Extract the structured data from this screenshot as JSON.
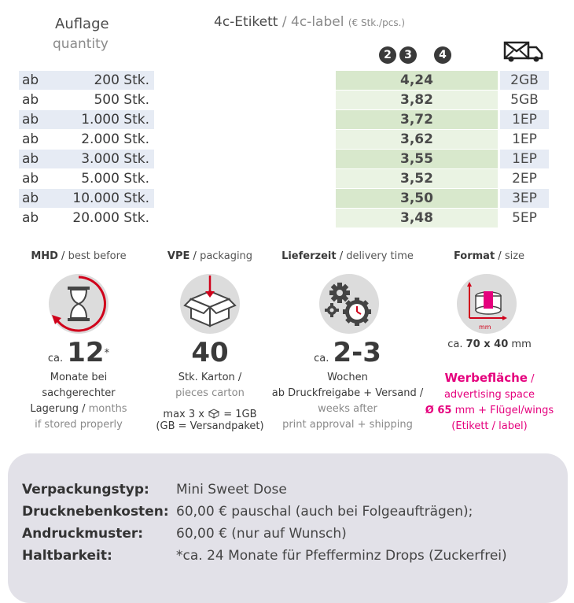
{
  "header": {
    "quantity_de": "Auflage",
    "quantity_en": "quantity",
    "price_de": "4c-Etikett",
    "price_sep": " / ",
    "price_en": "4c-label",
    "price_unit": "(€ Stk./pcs.)",
    "circle_numbers": [
      "2",
      "3",
      "4"
    ]
  },
  "rows": [
    {
      "ab": "ab",
      "qty": "200 Stk.",
      "price": "4,24",
      "ship": "2GB"
    },
    {
      "ab": "ab",
      "qty": "500 Stk.",
      "price": "3,82",
      "ship": "5GB"
    },
    {
      "ab": "ab",
      "qty": "1.000 Stk.",
      "price": "3,72",
      "ship": "1EP"
    },
    {
      "ab": "ab",
      "qty": "2.000 Stk.",
      "price": "3,62",
      "ship": "1EP"
    },
    {
      "ab": "ab",
      "qty": "3.000 Stk.",
      "price": "3,55",
      "ship": "1EP"
    },
    {
      "ab": "ab",
      "qty": "5.000 Stk.",
      "price": "3,52",
      "ship": "2EP"
    },
    {
      "ab": "ab",
      "qty": "10.000 Stk.",
      "price": "3,50",
      "ship": "3EP"
    },
    {
      "ab": "ab",
      "qty": "20.000 Stk.",
      "price": "3,48",
      "ship": "5EP"
    }
  ],
  "colors": {
    "row_blue": "#e6ebf4",
    "row_green_dark": "#d8e8cc",
    "row_green_light": "#eaf3e3",
    "accent_pink": "#e5007d",
    "accent_red": "#d0021b"
  },
  "info": {
    "mhd": {
      "head_de": "MHD",
      "head_en": "best before",
      "ca": "ca.",
      "value": "12",
      "star": "*",
      "line1": "Monate bei",
      "line2": "sachgerechter",
      "line3_de": "Lagerung",
      "line3_en": "months",
      "line4": "if stored properly"
    },
    "vpe": {
      "head_de": "VPE",
      "head_en": "packaging",
      "value": "40",
      "line1": "Stk. Karton /",
      "line2": "pieces carton",
      "line3a": "max 3 x",
      "line3b": "= 1GB",
      "line4": "(GB = Versandpaket)"
    },
    "delivery": {
      "head_de": "Lieferzeit",
      "head_en": "delivery time",
      "ca": "ca.",
      "value": "2-3",
      "line1": "Wochen",
      "line2": "ab Druckfreigabe + Versand /",
      "line3": "weeks after",
      "line4": "print approval + shipping"
    },
    "format": {
      "head_de": "Format",
      "head_en": "size",
      "mm_label": "mm",
      "line1_ca": "ca.",
      "line1_val": "70 x 40",
      "line1_unit": "mm",
      "ad_de": "Werbefläche",
      "ad_sep": " /",
      "ad_en": "advertising space",
      "ad_dim": "Ø 65",
      "ad_rest": "mm + Flügel/wings",
      "ad_note": "(Etikett / label)"
    }
  },
  "bottom": [
    {
      "label": "Verpackungstyp:",
      "value": "Mini Sweet Dose"
    },
    {
      "label": "Drucknebenkosten:",
      "value": "60,00 € pauschal (auch bei Folgeaufträgen);"
    },
    {
      "label": "Andruckmuster:",
      "value": "60,00 € (nur auf Wunsch)"
    },
    {
      "label": "Haltbarkeit:",
      "value": "*ca. 24 Monate für Pfefferminz Drops (Zuckerfrei)"
    }
  ]
}
